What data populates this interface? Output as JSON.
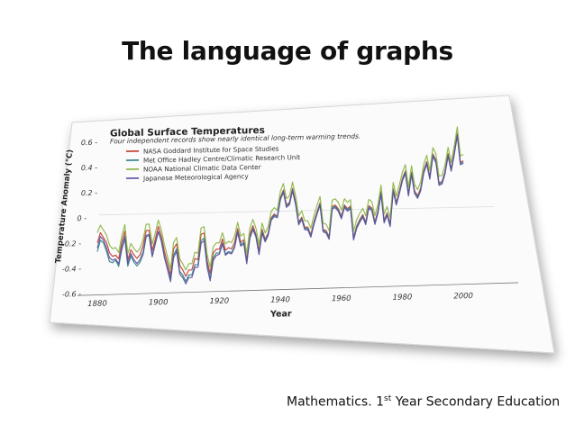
{
  "slide": {
    "title": "The language of graphs",
    "footer_before": "Mathematics. 1",
    "footer_sup": "st",
    "footer_after": " Year Secondary Education"
  },
  "chart_data": {
    "type": "line",
    "title": "Global Surface Temperatures",
    "subtitle": "Four independent records show nearly identical long-term warming trends.",
    "xlabel": "Year",
    "ylabel": "Temperature Anomaly (°C)",
    "xlim": [
      1880,
      2010
    ],
    "ylim": [
      -0.6,
      0.6
    ],
    "xticks": [
      "1880",
      "1900",
      "1920",
      "1940",
      "1960",
      "1980",
      "2000"
    ],
    "yticks": [
      "0.6",
      "0.4",
      "0.2",
      "0",
      "-0.2",
      "-0.4",
      "-0.6"
    ],
    "legend_position": "top-left",
    "grid": false,
    "x": [
      1880,
      1881,
      1882,
      1883,
      1884,
      1885,
      1886,
      1887,
      1888,
      1889,
      1890,
      1891,
      1892,
      1893,
      1894,
      1895,
      1896,
      1897,
      1898,
      1899,
      1900,
      1901,
      1902,
      1903,
      1904,
      1905,
      1906,
      1907,
      1908,
      1909,
      1910,
      1911,
      1912,
      1913,
      1914,
      1915,
      1916,
      1917,
      1918,
      1919,
      1920,
      1921,
      1922,
      1923,
      1924,
      1925,
      1926,
      1927,
      1928,
      1929,
      1930,
      1931,
      1932,
      1933,
      1934,
      1935,
      1936,
      1937,
      1938,
      1939,
      1940,
      1941,
      1942,
      1943,
      1944,
      1945,
      1946,
      1947,
      1948,
      1949,
      1950,
      1951,
      1952,
      1953,
      1954,
      1955,
      1956,
      1957,
      1958,
      1959,
      1960,
      1961,
      1962,
      1963,
      1964,
      1965,
      1966,
      1967,
      1968,
      1969,
      1970,
      1971,
      1972,
      1973,
      1974,
      1975,
      1976,
      1977,
      1978,
      1979,
      1980,
      1981,
      1982,
      1983,
      1984,
      1985,
      1986,
      1987,
      1988,
      1989,
      1990,
      1991,
      1992,
      1993,
      1994,
      1995,
      1996,
      1997,
      1998,
      1999,
      2000
    ],
    "series": [
      {
        "name": "NASA Goddard Institute for Space Studies",
        "color": "#c0392b",
        "values": [
          -0.2,
          -0.12,
          -0.16,
          -0.2,
          -0.28,
          -0.31,
          -0.3,
          -0.33,
          -0.2,
          -0.11,
          -0.34,
          -0.26,
          -0.3,
          -0.33,
          -0.3,
          -0.23,
          -0.11,
          -0.11,
          -0.27,
          -0.18,
          -0.08,
          -0.16,
          -0.28,
          -0.37,
          -0.47,
          -0.26,
          -0.22,
          -0.39,
          -0.43,
          -0.48,
          -0.43,
          -0.43,
          -0.34,
          -0.35,
          -0.15,
          -0.14,
          -0.36,
          -0.46,
          -0.3,
          -0.27,
          -0.27,
          -0.19,
          -0.28,
          -0.26,
          -0.27,
          -0.22,
          -0.11,
          -0.22,
          -0.2,
          -0.36,
          -0.16,
          -0.09,
          -0.16,
          -0.29,
          -0.12,
          -0.2,
          -0.15,
          -0.03,
          0.0,
          -0.02,
          0.13,
          0.19,
          0.07,
          0.09,
          0.2,
          0.09,
          -0.07,
          -0.03,
          -0.11,
          -0.11,
          -0.17,
          -0.07,
          0.01,
          0.08,
          -0.13,
          -0.14,
          -0.19,
          0.05,
          0.06,
          0.03,
          -0.03,
          0.06,
          0.03,
          0.05,
          -0.2,
          -0.11,
          -0.06,
          -0.02,
          -0.08,
          0.05,
          0.03,
          -0.08,
          0.01,
          0.16,
          -0.07,
          -0.01,
          -0.1,
          0.18,
          0.07,
          0.16,
          0.26,
          0.32,
          0.14,
          0.31,
          0.16,
          0.12,
          0.18,
          0.32,
          0.39,
          0.27,
          0.45,
          0.4,
          0.22,
          0.23,
          0.31,
          0.45,
          0.33,
          0.46,
          0.61,
          0.38,
          0.39
        ]
      },
      {
        "name": "Met Office Hadley Centre/Climatic Research Unit",
        "color": "#2e7d87",
        "values": [
          -0.27,
          -0.18,
          -0.2,
          -0.27,
          -0.35,
          -0.36,
          -0.34,
          -0.39,
          -0.26,
          -0.17,
          -0.39,
          -0.31,
          -0.36,
          -0.39,
          -0.36,
          -0.3,
          -0.16,
          -0.15,
          -0.32,
          -0.22,
          -0.12,
          -0.19,
          -0.32,
          -0.41,
          -0.5,
          -0.31,
          -0.26,
          -0.44,
          -0.47,
          -0.52,
          -0.47,
          -0.47,
          -0.39,
          -0.39,
          -0.2,
          -0.18,
          -0.39,
          -0.5,
          -0.34,
          -0.3,
          -0.3,
          -0.22,
          -0.31,
          -0.29,
          -0.3,
          -0.25,
          -0.13,
          -0.24,
          -0.22,
          -0.38,
          -0.18,
          -0.11,
          -0.17,
          -0.31,
          -0.14,
          -0.21,
          -0.16,
          -0.04,
          -0.01,
          -0.02,
          0.12,
          0.18,
          0.06,
          0.08,
          0.19,
          0.08,
          -0.08,
          -0.04,
          -0.12,
          -0.12,
          -0.18,
          -0.08,
          0.0,
          0.07,
          -0.14,
          -0.15,
          -0.2,
          0.04,
          0.05,
          0.02,
          -0.04,
          0.05,
          0.02,
          0.04,
          -0.21,
          -0.12,
          -0.07,
          -0.03,
          -0.09,
          0.04,
          0.02,
          -0.09,
          0.0,
          0.15,
          -0.08,
          -0.02,
          -0.11,
          0.17,
          0.06,
          0.15,
          0.25,
          0.31,
          0.13,
          0.3,
          0.15,
          0.11,
          0.17,
          0.31,
          0.38,
          0.26,
          0.44,
          0.39,
          0.21,
          0.22,
          0.3,
          0.44,
          0.32,
          0.45,
          0.6,
          0.37,
          0.38
        ]
      },
      {
        "name": "NOAA National Climatic Data Center",
        "color": "#8ab43f",
        "values": [
          -0.12,
          -0.06,
          -0.1,
          -0.14,
          -0.22,
          -0.25,
          -0.24,
          -0.28,
          -0.15,
          -0.06,
          -0.29,
          -0.21,
          -0.25,
          -0.28,
          -0.25,
          -0.18,
          -0.06,
          -0.06,
          -0.22,
          -0.13,
          -0.03,
          -0.11,
          -0.23,
          -0.32,
          -0.42,
          -0.21,
          -0.17,
          -0.34,
          -0.38,
          -0.43,
          -0.38,
          -0.38,
          -0.29,
          -0.3,
          -0.1,
          -0.09,
          -0.31,
          -0.41,
          -0.25,
          -0.22,
          -0.22,
          -0.14,
          -0.23,
          -0.21,
          -0.22,
          -0.17,
          -0.06,
          -0.17,
          -0.15,
          -0.31,
          -0.11,
          -0.04,
          -0.11,
          -0.24,
          -0.07,
          -0.15,
          -0.1,
          0.02,
          0.05,
          0.03,
          0.18,
          0.24,
          0.12,
          0.14,
          0.25,
          0.14,
          -0.02,
          0.02,
          -0.06,
          -0.06,
          -0.12,
          -0.02,
          0.06,
          0.13,
          -0.08,
          -0.09,
          -0.14,
          0.1,
          0.11,
          0.08,
          0.02,
          0.11,
          0.08,
          0.1,
          -0.15,
          -0.06,
          -0.01,
          0.03,
          -0.03,
          0.1,
          0.08,
          -0.03,
          0.06,
          0.21,
          -0.02,
          0.04,
          -0.05,
          0.23,
          0.12,
          0.21,
          0.31,
          0.37,
          0.19,
          0.36,
          0.21,
          0.17,
          0.23,
          0.37,
          0.44,
          0.32,
          0.5,
          0.45,
          0.27,
          0.28,
          0.36,
          0.5,
          0.38,
          0.51,
          0.66,
          0.43,
          0.44
        ]
      },
      {
        "name": "Japanese Meteorological Agency",
        "color": "#5b4f9e",
        "values": [
          -0.24,
          -0.15,
          -0.18,
          -0.24,
          -0.32,
          -0.34,
          -0.33,
          -0.37,
          -0.24,
          -0.15,
          -0.37,
          -0.29,
          -0.34,
          -0.37,
          -0.34,
          -0.28,
          -0.15,
          -0.14,
          -0.31,
          -0.21,
          -0.12,
          -0.2,
          -0.33,
          -0.42,
          -0.52,
          -0.33,
          -0.28,
          -0.46,
          -0.49,
          -0.54,
          -0.49,
          -0.49,
          -0.41,
          -0.41,
          -0.22,
          -0.2,
          -0.41,
          -0.52,
          -0.36,
          -0.32,
          -0.31,
          -0.23,
          -0.32,
          -0.3,
          -0.31,
          -0.26,
          -0.14,
          -0.25,
          -0.23,
          -0.39,
          -0.19,
          -0.12,
          -0.18,
          -0.32,
          -0.15,
          -0.22,
          -0.17,
          -0.05,
          -0.02,
          -0.03,
          0.11,
          0.17,
          0.05,
          0.07,
          0.18,
          0.07,
          -0.09,
          -0.05,
          -0.13,
          -0.13,
          -0.19,
          -0.09,
          -0.01,
          0.06,
          -0.15,
          -0.16,
          -0.21,
          0.03,
          0.04,
          0.01,
          -0.05,
          0.04,
          0.01,
          0.03,
          -0.22,
          -0.13,
          -0.08,
          -0.04,
          -0.1,
          0.03,
          0.01,
          -0.1,
          -0.01,
          0.14,
          -0.09,
          -0.03,
          -0.12,
          0.16,
          0.05,
          0.14,
          0.24,
          0.3,
          0.12,
          0.29,
          0.14,
          0.1,
          0.16,
          0.3,
          0.37,
          0.25,
          0.43,
          0.38,
          0.2,
          0.21,
          0.29,
          0.43,
          0.31,
          0.44,
          0.59,
          0.36,
          0.37
        ]
      }
    ]
  }
}
